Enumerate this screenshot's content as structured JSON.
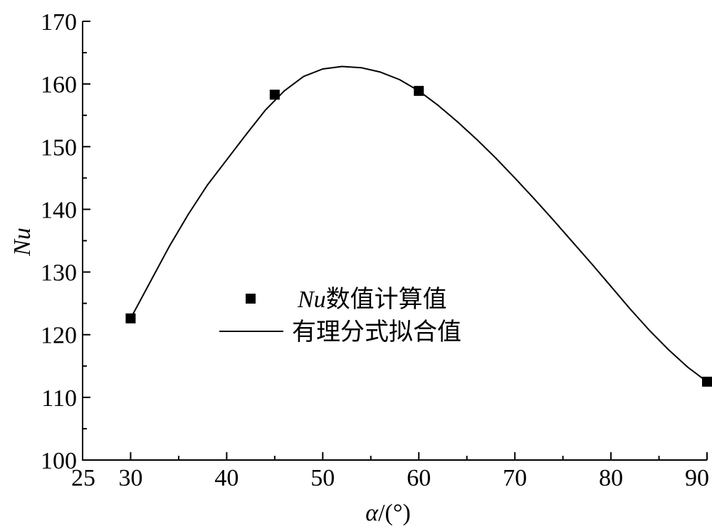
{
  "chart_data": {
    "type": "scatter",
    "xlabel": {
      "symbol": "α",
      "unit": "/(°)"
    },
    "ylabel": "Nu",
    "xlim": [
      25,
      90
    ],
    "ylim": [
      100,
      170
    ],
    "xticks": [
      25,
      30,
      40,
      50,
      60,
      70,
      80,
      90
    ],
    "yticks": [
      100,
      110,
      120,
      130,
      140,
      150,
      160,
      170
    ],
    "grid": false,
    "legend_position": "center",
    "series": [
      {
        "name_prefix": "Nu",
        "name": "数值计算值",
        "kind": "markers",
        "marker": "square",
        "color": "#000000",
        "x": [
          30,
          45,
          60,
          90
        ],
        "y": [
          122.6,
          158.3,
          158.9,
          112.5
        ]
      },
      {
        "name": "有理分式拟合值",
        "kind": "line",
        "color": "#000000",
        "x": [
          30,
          32,
          34,
          36,
          38,
          40,
          42,
          44,
          46,
          48,
          50,
          52,
          54,
          56,
          58,
          60,
          62,
          64,
          66,
          68,
          70,
          72,
          74,
          76,
          78,
          80,
          82,
          84,
          86,
          88,
          90
        ],
        "y": [
          122.6,
          128.3,
          134.0,
          139.2,
          143.9,
          147.9,
          151.9,
          155.8,
          158.9,
          161.2,
          162.4,
          162.8,
          162.6,
          161.9,
          160.7,
          158.9,
          156.6,
          154.0,
          151.2,
          148.2,
          145.0,
          141.7,
          138.3,
          134.8,
          131.3,
          127.7,
          124.1,
          120.7,
          117.6,
          114.8,
          112.5
        ]
      }
    ]
  }
}
